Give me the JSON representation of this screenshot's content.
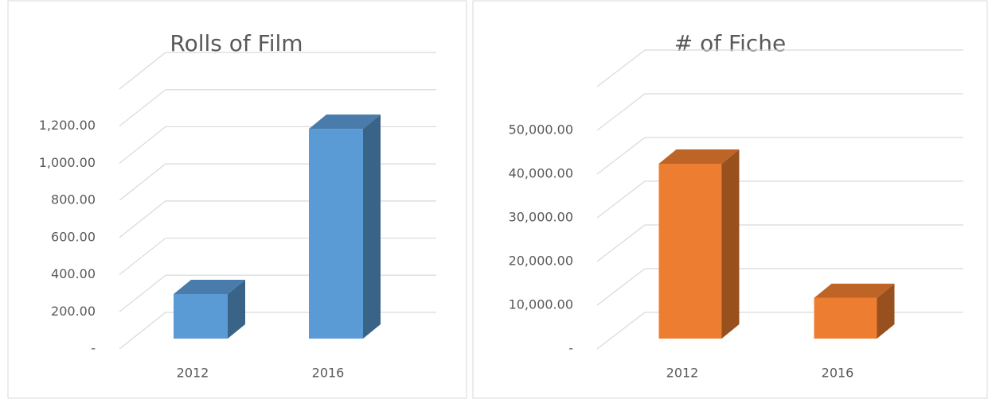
{
  "chart_data": [
    {
      "type": "bar3d",
      "title": "Rolls of Film",
      "categories": [
        "2012",
        "2016"
      ],
      "values": [
        240,
        1130
      ],
      "color": "#5b9bd5",
      "ylim": [
        0,
        1400
      ],
      "yticks": [
        {
          "value": 0,
          "label": "-"
        },
        {
          "value": 200,
          "label": "200.00"
        },
        {
          "value": 400,
          "label": "400.00"
        },
        {
          "value": 600,
          "label": "600.00"
        },
        {
          "value": 800,
          "label": "800.00"
        },
        {
          "value": 1000,
          "label": "1,000.00"
        },
        {
          "value": 1200,
          "label": "1,200.00"
        }
      ],
      "grid": true
    },
    {
      "type": "bar3d",
      "title": "# of Fiche",
      "categories": [
        "2012",
        "2016"
      ],
      "values": [
        40000,
        9300
      ],
      "color": "#ed7d31",
      "ylim": [
        0,
        60000
      ],
      "yticks": [
        {
          "value": 0,
          "label": "-"
        },
        {
          "value": 10000,
          "label": "10,000.00"
        },
        {
          "value": 20000,
          "label": "20,000.00"
        },
        {
          "value": 30000,
          "label": "30,000.00"
        },
        {
          "value": 40000,
          "label": "40,000.00"
        },
        {
          "value": 50000,
          "label": "50,000.00"
        }
      ],
      "grid": true
    }
  ]
}
